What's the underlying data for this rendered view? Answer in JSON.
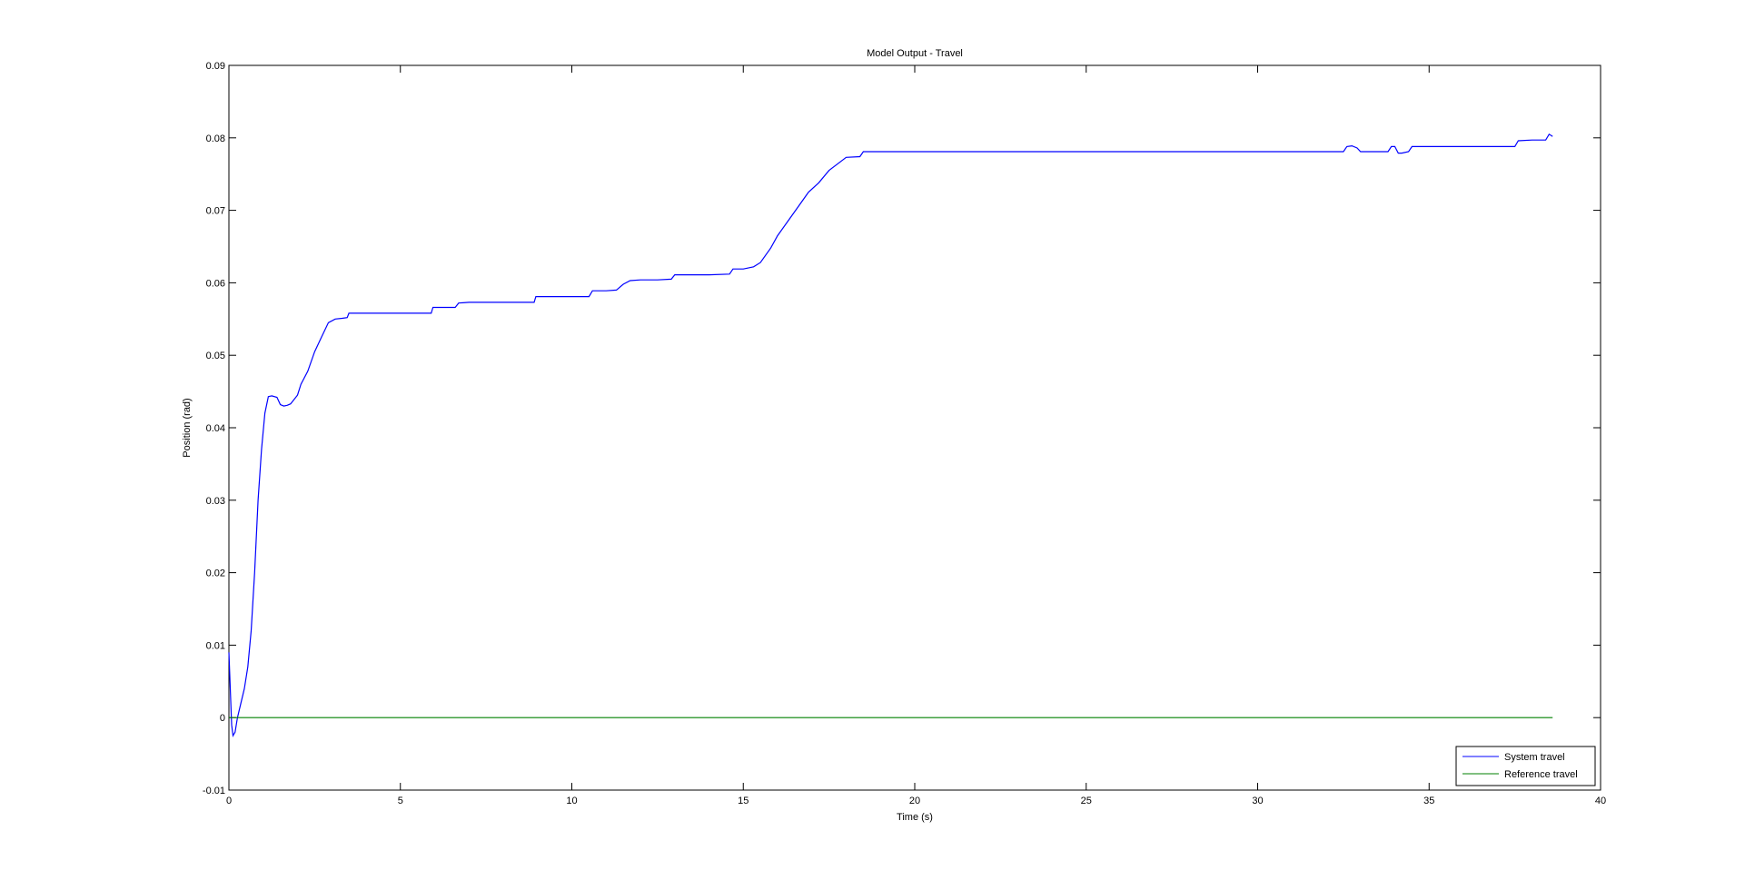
{
  "chart_data": {
    "type": "line",
    "title": "Model Output - Travel",
    "xlabel": "Time (s)",
    "ylabel": "Position (rad)",
    "xlim": [
      0,
      40
    ],
    "ylim": [
      -0.01,
      0.09
    ],
    "xticks": [
      0,
      5,
      10,
      15,
      20,
      25,
      30,
      35,
      40
    ],
    "xtick_labels": [
      "0",
      "5",
      "10",
      "15",
      "20",
      "25",
      "30",
      "35",
      "40"
    ],
    "yticks": [
      -0.01,
      0,
      0.01,
      0.02,
      0.03,
      0.04,
      0.05,
      0.06,
      0.07,
      0.08,
      0.09
    ],
    "ytick_labels": [
      "-0.01",
      "0",
      "0.01",
      "0.02",
      "0.03",
      "0.04",
      "0.05",
      "0.06",
      "0.07",
      "0.08",
      "0.09"
    ],
    "grid": false,
    "legend_position": "bottom-right",
    "series": [
      {
        "name": "System travel",
        "color": "#0000ff",
        "x": [
          0,
          0.04,
          0.08,
          0.12,
          0.18,
          0.25,
          0.35,
          0.45,
          0.55,
          0.65,
          0.75,
          0.85,
          0.95,
          1.05,
          1.15,
          1.25,
          1.4,
          1.5,
          1.6,
          1.7,
          1.8,
          2.0,
          2.1,
          2.3,
          2.5,
          2.7,
          2.9,
          3.1,
          3.3,
          3.45,
          3.5,
          3.55,
          4.0,
          5.0,
          5.9,
          5.95,
          6.6,
          6.7,
          7.0,
          8.0,
          8.9,
          8.95,
          10.0,
          10.5,
          10.6,
          11.0,
          11.3,
          11.5,
          11.7,
          12.0,
          12.5,
          12.9,
          13.0,
          14.0,
          14.6,
          14.7,
          15.0,
          15.3,
          15.5,
          15.8,
          16.0,
          16.3,
          16.6,
          16.9,
          17.2,
          17.5,
          18.0,
          18.4,
          18.5,
          19.0,
          20.0,
          20.2,
          25.0,
          30.0,
          32.5,
          32.6,
          32.75,
          32.9,
          33.0,
          33.8,
          33.9,
          34.0,
          34.1,
          34.2,
          34.4,
          34.5,
          34.6,
          35.0,
          36.0,
          37.0,
          37.5,
          37.6,
          38.0,
          38.4,
          38.5,
          38.6
        ],
        "y": [
          0.009,
          0.004,
          -0.001,
          -0.0025,
          -0.002,
          0.0,
          0.002,
          0.004,
          0.007,
          0.012,
          0.02,
          0.03,
          0.037,
          0.042,
          0.0443,
          0.0444,
          0.0442,
          0.0432,
          0.043,
          0.0431,
          0.0433,
          0.0445,
          0.046,
          0.0478,
          0.0505,
          0.0525,
          0.0545,
          0.055,
          0.0551,
          0.0552,
          0.0558,
          0.0558,
          0.0558,
          0.0558,
          0.0558,
          0.0566,
          0.0566,
          0.0572,
          0.0573,
          0.0573,
          0.0573,
          0.0581,
          0.0581,
          0.0581,
          0.0589,
          0.0589,
          0.059,
          0.0598,
          0.0603,
          0.0604,
          0.0604,
          0.0605,
          0.0611,
          0.0611,
          0.0612,
          0.0619,
          0.0619,
          0.0622,
          0.0628,
          0.0648,
          0.0665,
          0.0685,
          0.0705,
          0.0725,
          0.0738,
          0.0755,
          0.0773,
          0.0774,
          0.0781,
          0.0781,
          0.0781,
          0.0781,
          0.0781,
          0.0781,
          0.0781,
          0.0788,
          0.0789,
          0.0786,
          0.0781,
          0.0781,
          0.0788,
          0.0788,
          0.0779,
          0.0779,
          0.0781,
          0.0788,
          0.0788,
          0.0788,
          0.0788,
          0.0788,
          0.0788,
          0.0796,
          0.0797,
          0.0797,
          0.0805,
          0.0802
        ]
      },
      {
        "name": "Reference travel",
        "color": "#008000",
        "x": [
          0,
          38.6
        ],
        "y": [
          0,
          0
        ]
      }
    ]
  }
}
